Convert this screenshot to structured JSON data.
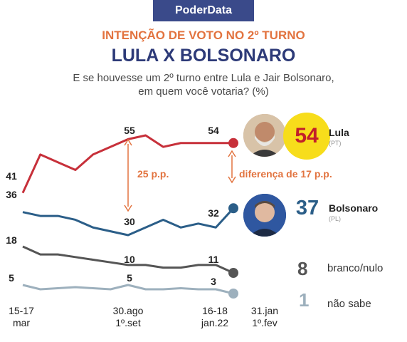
{
  "header": {
    "brand": "PoderData",
    "title": "INTENÇÃO DE VOTO NO 2º TURNO",
    "subtitle": "LULA X BOLSONARO",
    "question_line1": "E se houvesse um 2º turno entre Lula e Jair Bolsonaro,",
    "question_line2": "em quem você votaria?  (%)"
  },
  "chart_data": {
    "type": "line",
    "x_labels": [
      {
        "line1": "15-17",
        "line2": "mar"
      },
      {
        "line1": "30.ago",
        "line2": "1º.set"
      },
      {
        "line1": "16-18",
        "line2": "jan.22"
      },
      {
        "line1": "31.jan",
        "line2": "1º.fev"
      }
    ],
    "series": [
      {
        "name": "Lula",
        "party": "(PT)",
        "color": "#c7303a",
        "values": [
          41,
          51,
          49,
          47,
          51,
          53,
          55,
          56,
          53,
          54,
          54,
          54,
          54
        ],
        "labels": {
          "first": "41",
          "peak": "55",
          "prev": "54"
        },
        "final": "54"
      },
      {
        "name": "Bolsonaro",
        "party": "(PL)",
        "color": "#2b5e88",
        "values": [
          36,
          35,
          35,
          34,
          32,
          31,
          30,
          32,
          34,
          32,
          33,
          32,
          37
        ],
        "labels": {
          "first": "36",
          "low": "30",
          "prev": "32"
        },
        "final": "37"
      },
      {
        "name": "branco/nulo",
        "color": "#555555",
        "values": [
          18,
          15,
          15,
          14,
          13,
          12,
          11,
          11,
          10,
          10,
          11,
          11,
          8
        ],
        "labels": {
          "first": "18",
          "mid": "10",
          "prev": "11"
        },
        "final": "8"
      },
      {
        "name": "não sabe",
        "color": "#9db0bd",
        "values": [
          5,
          3,
          3.5,
          4,
          3.5,
          3,
          5,
          3,
          3,
          3.5,
          3,
          3,
          1
        ],
        "labels": {
          "first": "5",
          "mid": "5",
          "prev": "3"
        },
        "final": "1"
      }
    ],
    "annotations": {
      "gap_past": "25 p.p.",
      "gap_now": "diferença de 17 p.p."
    },
    "accent": "#e2733f"
  }
}
